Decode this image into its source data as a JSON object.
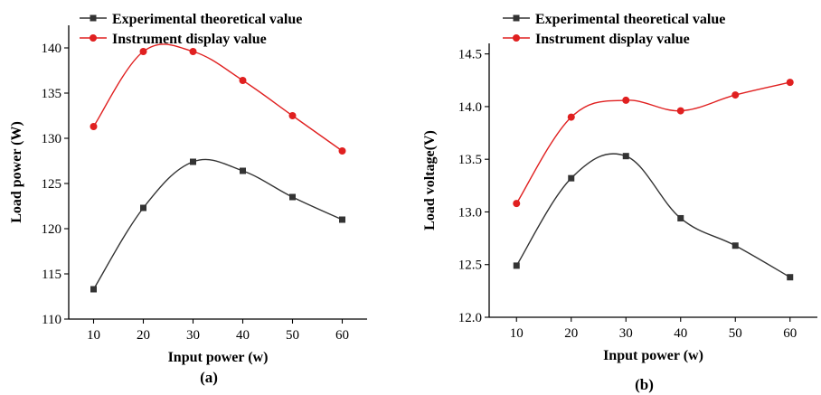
{
  "colors": {
    "experimental": "#333333",
    "instrument": "#e02020",
    "axis": "#000000"
  },
  "chart_data": [
    {
      "type": "line",
      "panel_label": "(a)",
      "xlabel": "Input power (w)",
      "ylabel": "Load power (W)",
      "xlim": [
        5,
        65
      ],
      "ylim": [
        110,
        142.5
      ],
      "x_ticks": [
        "10",
        "20",
        "30",
        "40",
        "50",
        "60"
      ],
      "y_ticks": [
        "110",
        "115",
        "120",
        "125",
        "130",
        "135",
        "140"
      ],
      "legend": "top-left",
      "grid": false,
      "x": [
        10,
        20,
        30,
        40,
        50,
        60
      ],
      "series": [
        {
          "name": "Experimental theoretical value",
          "values": [
            113.3,
            122.3,
            127.4,
            126.4,
            123.5,
            121.0
          ]
        },
        {
          "name": "Instrument display value",
          "values": [
            131.3,
            139.6,
            139.6,
            136.4,
            132.5,
            128.6
          ]
        }
      ]
    },
    {
      "type": "line",
      "panel_label": "(b)",
      "xlabel": "Input power (w)",
      "ylabel": "Load voltage(V)",
      "xlim": [
        5,
        65
      ],
      "ylim": [
        12.0,
        14.6
      ],
      "x_ticks": [
        "10",
        "20",
        "30",
        "40",
        "50",
        "60"
      ],
      "y_ticks": [
        "12.0",
        "12.5",
        "13.0",
        "13.5",
        "14.0",
        "14.5"
      ],
      "legend": "top-left",
      "grid": false,
      "x": [
        10,
        20,
        30,
        40,
        50,
        60
      ],
      "series": [
        {
          "name": "Experimental theoretical value",
          "values": [
            12.49,
            13.32,
            13.53,
            12.94,
            12.68,
            12.38
          ]
        },
        {
          "name": "Instrument display value",
          "values": [
            13.08,
            13.9,
            14.06,
            13.96,
            14.11,
            14.23
          ]
        }
      ]
    }
  ]
}
